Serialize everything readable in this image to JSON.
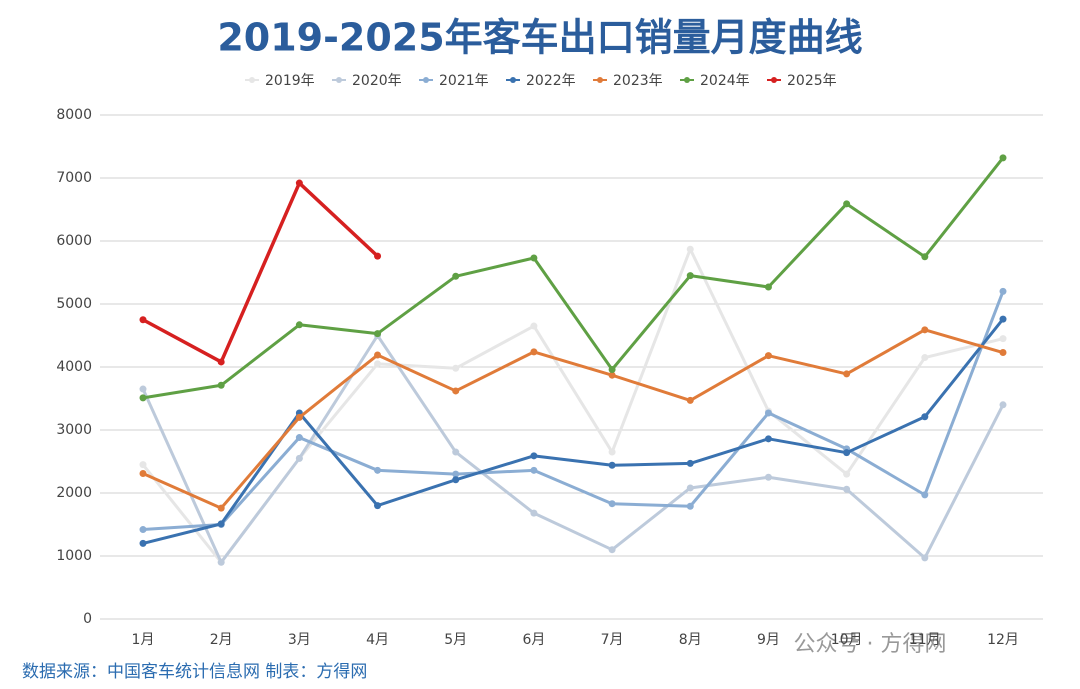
{
  "chart_data": {
    "type": "line",
    "title": "2019-2025年客车出口销量月度曲线",
    "categories": [
      "1月",
      "2月",
      "3月",
      "4月",
      "5月",
      "6月",
      "7月",
      "8月",
      "9月",
      "10月",
      "11月",
      "12月"
    ],
    "series": [
      {
        "name": "2019年",
        "color": "#e6e6e6",
        "values": [
          2450,
          900,
          2550,
          4050,
          3980,
          4650,
          2650,
          5870,
          3300,
          2300,
          4150,
          4450
        ]
      },
      {
        "name": "2020年",
        "color": "#bdcadb",
        "values": [
          3650,
          900,
          2550,
          4500,
          2650,
          1680,
          1100,
          2080,
          2250,
          2060,
          970,
          3400
        ]
      },
      {
        "name": "2021年",
        "color": "#8badd3",
        "values": [
          1420,
          1500,
          2880,
          2360,
          2300,
          2360,
          1830,
          1790,
          3270,
          2700,
          1970,
          5200
        ]
      },
      {
        "name": "2022年",
        "color": "#3a72b0",
        "values": [
          1200,
          1510,
          3270,
          1800,
          2210,
          2590,
          2440,
          2470,
          2860,
          2640,
          3210,
          4760
        ]
      },
      {
        "name": "2023年",
        "color": "#e07b39",
        "values": [
          2310,
          1760,
          3200,
          4190,
          3620,
          4240,
          3870,
          3470,
          4180,
          3890,
          4590,
          4230
        ]
      },
      {
        "name": "2024年",
        "color": "#5fa044",
        "values": [
          3510,
          3710,
          4670,
          4530,
          5440,
          5730,
          3960,
          5450,
          5270,
          6590,
          5750,
          7320
        ]
      },
      {
        "name": "2025年",
        "color": "#d62020",
        "values": [
          4750,
          4080,
          6920,
          5760,
          null,
          null,
          null,
          null,
          null,
          null,
          null,
          null
        ]
      }
    ],
    "ylim": [
      0,
      8000
    ],
    "yticks": [
      0,
      1000,
      2000,
      3000,
      4000,
      5000,
      6000,
      7000,
      8000
    ],
    "grid": true,
    "source": "数据来源：中国客车统计信息网  制表：方得网",
    "watermark": "公众号 · 方得网"
  }
}
